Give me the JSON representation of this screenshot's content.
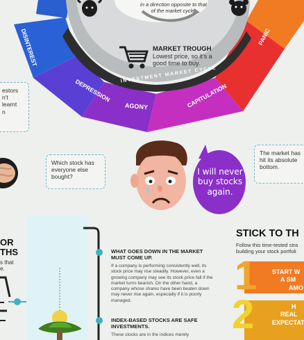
{
  "colors": {
    "background": "#eef0ee",
    "teal": "#3fb0c2",
    "purple": "#8b2fc9",
    "orange": "#f07b22",
    "red": "#e8302f"
  },
  "cycle": {
    "center_line1": "in a direction opposite to that",
    "center_line2": "of the market cycle.",
    "ring_label": "INVESTMENT MARKET CYCLE",
    "trough_title": "MARKET TROUGH",
    "trough_text_1": "Lowest price, so it's a",
    "trough_text_2": "good time to buy.",
    "segments": [
      "DISINTEREST",
      "DEPRESSION",
      "AGONY",
      "CAPITULATION",
      "PANIC"
    ],
    "icons": [
      "bull-icon",
      "bear-icon",
      "shopping-cart-icon"
    ]
  },
  "bubbles": {
    "left_partial_1": "estors",
    "left_partial_2": "n't learnt",
    "left_partial_3": "n",
    "which_stock": "Which stock has everyone else bought?",
    "absolute_bottom": "The market has hit its absolute bottom.",
    "never_buy": "I will never buy stocks again."
  },
  "left_fragment": {
    "line1": "OR",
    "line2": "THS",
    "line3": "s that",
    "line4": "e."
  },
  "myths": [
    {
      "title": "WHAT GOES DOWN IN THE MARKET MUST COME UP.",
      "body": "If a company is performing consistently well, its stock price may rise steadily. However, even a growing company may see its stock price fall if the market turns bearish. On the other hand, a company whose shares have been beaten down may never rise again, especially if it is poorly managed."
    },
    {
      "title": "INDEX-BASED STOCKS ARE SAFE INVESTMENTS.",
      "body": "These stocks are in the indices merely"
    }
  ],
  "stick": {
    "title": "STICK TO TH",
    "subtitle_1": "Follow this time-tested stra",
    "subtitle_2": "building your stock portfoli",
    "step1_num": "1",
    "step1_text_1": "START W",
    "step1_text_2": "A SM",
    "step1_text_3": "AMO",
    "step2_num": "2",
    "step2_text_1": "H",
    "step2_text_2": "REAL",
    "step2_text_3": "EXPECTAT"
  }
}
